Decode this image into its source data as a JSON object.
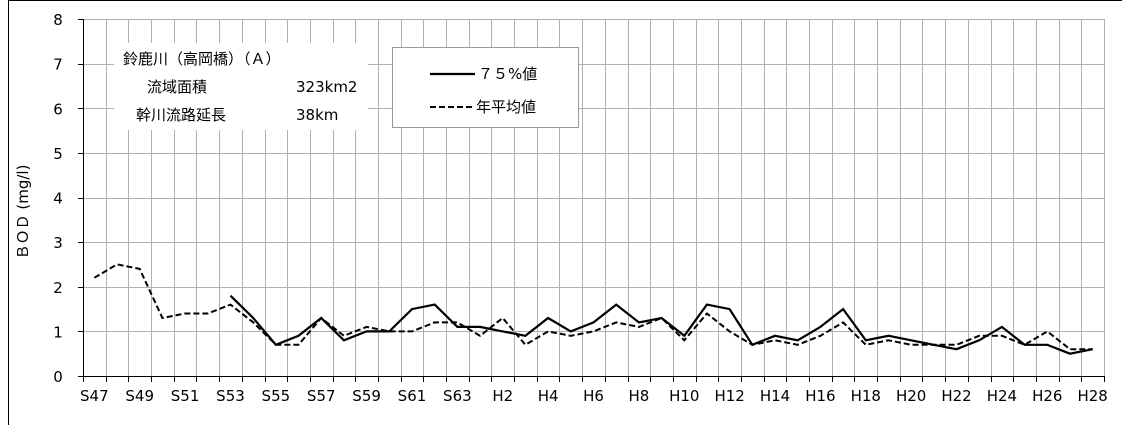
{
  "chart_data": {
    "type": "line",
    "title": "",
    "xlabel": "",
    "ylabel": "ＢＯＤ (mg/l)",
    "ylim": [
      0,
      8
    ],
    "yticks": [
      "0",
      "1",
      "2",
      "3",
      "4",
      "5",
      "6",
      "7",
      "8"
    ],
    "grid": true,
    "categories": [
      "S47",
      "S48",
      "S49",
      "S50",
      "S51",
      "S52",
      "S53",
      "S54",
      "S55",
      "S56",
      "S57",
      "S58",
      "S59",
      "S60",
      "S61",
      "S62",
      "S63",
      "H1",
      "H2",
      "H3",
      "H4",
      "H5",
      "H6",
      "H7",
      "H8",
      "H9",
      "H10",
      "H11",
      "H12",
      "H13",
      "H14",
      "H15",
      "H16",
      "H17",
      "H18",
      "H19",
      "H20",
      "H21",
      "H22",
      "H23",
      "H24",
      "H25",
      "H26",
      "H27",
      "H28"
    ],
    "tick_labels": [
      "S47",
      "S49",
      "S51",
      "S53",
      "S55",
      "S57",
      "S59",
      "S61",
      "S63",
      "H2",
      "H4",
      "H6",
      "H8",
      "H10",
      "H12",
      "H14",
      "H16",
      "H18",
      "H20",
      "H22",
      "H24",
      "H26",
      "H28"
    ],
    "info_box": {
      "river": "鈴鹿川（高岡橋）（Ａ）",
      "area_label": "流域面積",
      "area_value": "323km2",
      "length_label": "幹川流路延長",
      "length_value": "38km"
    },
    "legend_position": "top-left",
    "series": [
      {
        "name": "７５%値",
        "style": "solid",
        "values": [
          null,
          null,
          null,
          null,
          null,
          null,
          1.8,
          1.3,
          0.7,
          0.9,
          1.3,
          0.8,
          1.0,
          1.0,
          1.5,
          1.6,
          1.1,
          1.1,
          1.0,
          0.9,
          1.3,
          1.0,
          1.2,
          1.6,
          1.2,
          1.3,
          0.9,
          1.6,
          1.5,
          0.7,
          0.9,
          0.8,
          1.1,
          1.5,
          0.8,
          0.9,
          0.8,
          0.7,
          0.6,
          0.8,
          1.1,
          0.7,
          0.7,
          0.5,
          0.6
        ]
      },
      {
        "name": "年平均値",
        "style": "dashed",
        "values": [
          2.2,
          2.5,
          2.4,
          1.3,
          1.4,
          1.4,
          1.6,
          1.2,
          0.7,
          0.7,
          1.3,
          0.9,
          1.1,
          1.0,
          1.0,
          1.2,
          1.2,
          0.9,
          1.3,
          0.7,
          1.0,
          0.9,
          1.0,
          1.2,
          1.1,
          1.3,
          0.8,
          1.4,
          1.0,
          0.7,
          0.8,
          0.7,
          0.9,
          1.2,
          0.7,
          0.8,
          0.7,
          0.7,
          0.7,
          0.9,
          0.9,
          0.7,
          1.0,
          0.6,
          0.6
        ]
      }
    ]
  }
}
